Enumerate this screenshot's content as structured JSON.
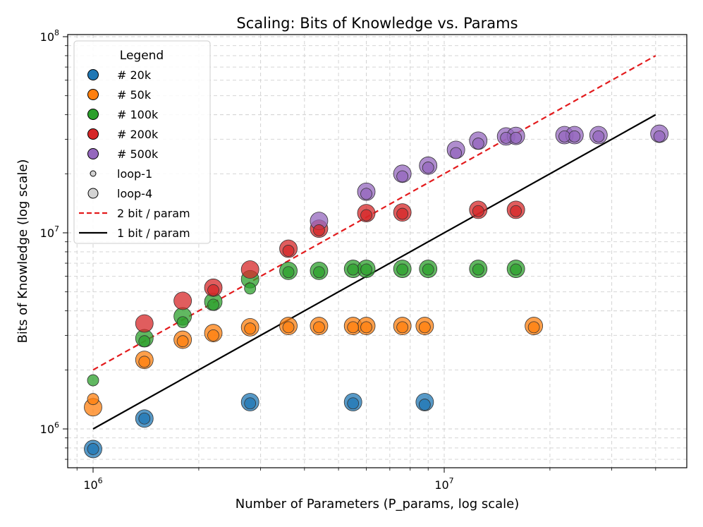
{
  "chart_data": {
    "type": "scatter",
    "title": "Scaling: Bits of Knowledge vs. Params",
    "xlabel": "Number of Parameters (P_params, log scale)",
    "ylabel": "Bits of Knowledge (log scale)",
    "xscale": "log",
    "yscale": "log",
    "xlim": [
      800000,
      55000000
    ],
    "ylim": [
      650000,
      105000000
    ],
    "x_ticks": [
      {
        "value": 1000000,
        "label": "10^6"
      },
      {
        "value": 10000000,
        "label": "10^7"
      }
    ],
    "y_ticks": [
      {
        "value": 1000000,
        "label": "10^6"
      },
      {
        "value": 10000000,
        "label": "10^7"
      },
      {
        "value": 100000000,
        "label": "10^8"
      }
    ],
    "grid": true,
    "legend_title": "Legend",
    "legend_position": "upper-left",
    "series": [
      {
        "name": "# 20k",
        "color": "#1f77b4",
        "loop1": [
          [
            1000000,
            790000
          ],
          [
            1400000,
            1130000
          ],
          [
            2800000,
            1350000
          ],
          [
            5500000,
            1350000
          ],
          [
            8800000,
            1330000
          ]
        ],
        "loop4": [
          [
            1000000,
            790000
          ],
          [
            1400000,
            1130000
          ],
          [
            2800000,
            1370000
          ],
          [
            5500000,
            1370000
          ],
          [
            8800000,
            1370000
          ]
        ]
      },
      {
        "name": "# 50k",
        "color": "#ff7f0e",
        "loop1": [
          [
            1000000,
            1420000
          ],
          [
            1400000,
            2200000
          ],
          [
            1800000,
            2800000
          ],
          [
            2200000,
            3000000
          ],
          [
            2800000,
            3250000
          ],
          [
            3600000,
            3300000
          ],
          [
            4400000,
            3300000
          ],
          [
            5500000,
            3300000
          ],
          [
            6000000,
            3300000
          ],
          [
            7600000,
            3300000
          ],
          [
            8800000,
            3300000
          ],
          [
            18000000,
            3300000
          ]
        ],
        "loop4": [
          [
            1000000,
            1290000
          ],
          [
            1400000,
            2250000
          ],
          [
            1800000,
            2850000
          ],
          [
            2200000,
            3080000
          ],
          [
            2800000,
            3300000
          ],
          [
            3600000,
            3350000
          ],
          [
            4400000,
            3350000
          ],
          [
            5500000,
            3350000
          ],
          [
            6000000,
            3350000
          ],
          [
            7600000,
            3350000
          ],
          [
            8800000,
            3350000
          ],
          [
            18000000,
            3350000
          ]
        ]
      },
      {
        "name": "# 100k",
        "color": "#2ca02c",
        "loop1": [
          [
            1000000,
            1770000
          ],
          [
            1400000,
            2800000
          ],
          [
            1800000,
            3500000
          ],
          [
            2200000,
            4300000
          ],
          [
            2800000,
            5200000
          ],
          [
            3600000,
            6300000
          ],
          [
            4400000,
            6300000
          ],
          [
            5500000,
            6500000
          ],
          [
            6000000,
            6500000
          ],
          [
            7600000,
            6500000
          ],
          [
            9000000,
            6500000
          ],
          [
            12500000,
            6500000
          ],
          [
            16000000,
            6500000
          ]
        ],
        "loop4": [
          [
            1400000,
            2900000
          ],
          [
            1800000,
            3750000
          ],
          [
            2200000,
            4450000
          ],
          [
            2800000,
            5800000
          ],
          [
            3600000,
            6400000
          ],
          [
            4400000,
            6400000
          ],
          [
            5500000,
            6550000
          ],
          [
            6000000,
            6550000
          ],
          [
            7600000,
            6550000
          ],
          [
            9000000,
            6550000
          ],
          [
            12500000,
            6550000
          ],
          [
            16000000,
            6550000
          ]
        ]
      },
      {
        "name": "# 200k",
        "color": "#d62728",
        "loop1": [
          [
            2200000,
            5100000
          ],
          [
            3600000,
            8100000
          ],
          [
            4400000,
            10300000
          ],
          [
            6000000,
            12300000
          ],
          [
            7600000,
            12500000
          ],
          [
            12500000,
            12900000
          ],
          [
            16000000,
            12900000
          ]
        ],
        "loop4": [
          [
            1400000,
            3450000
          ],
          [
            1800000,
            4500000
          ],
          [
            2200000,
            5250000
          ],
          [
            2800000,
            6500000
          ],
          [
            3600000,
            8300000
          ],
          [
            4400000,
            10500000
          ],
          [
            6000000,
            12600000
          ],
          [
            7600000,
            12700000
          ],
          [
            12500000,
            13100000
          ],
          [
            16000000,
            13100000
          ]
        ]
      },
      {
        "name": "# 500k",
        "color": "#9467bd",
        "loop1": [
          [
            6000000,
            15800000
          ],
          [
            7600000,
            19400000
          ],
          [
            9000000,
            21500000
          ],
          [
            10800000,
            25500000
          ],
          [
            12500000,
            28500000
          ],
          [
            15000000,
            30500000
          ],
          [
            16000000,
            30500000
          ],
          [
            22000000,
            31000000
          ],
          [
            23500000,
            31000000
          ],
          [
            27500000,
            31000000
          ],
          [
            41000000,
            31000000
          ]
        ],
        "loop4": [
          [
            4400000,
            11500000
          ],
          [
            6000000,
            16200000
          ],
          [
            7600000,
            20000000
          ],
          [
            9000000,
            22000000
          ],
          [
            10800000,
            26500000
          ],
          [
            12500000,
            29500000
          ],
          [
            15000000,
            31000000
          ],
          [
            16000000,
            31200000
          ],
          [
            22000000,
            31500000
          ],
          [
            23500000,
            31500000
          ],
          [
            27500000,
            31500000
          ],
          [
            41000000,
            32000000
          ]
        ]
      }
    ],
    "marker_legend": [
      {
        "name": "loop-1",
        "size": "small"
      },
      {
        "name": "loop-4",
        "size": "large"
      }
    ],
    "lines": [
      {
        "name": "2 bit / param",
        "style": "dashed",
        "color": "#e31a1c",
        "bits_per_param": 2,
        "x": [
          1000000,
          40000000
        ],
        "y": [
          2000000,
          80000000
        ]
      },
      {
        "name": "1 bit / param",
        "style": "solid",
        "color": "#000000",
        "bits_per_param": 1,
        "x": [
          1000000,
          40000000
        ],
        "y": [
          1000000,
          40000000
        ]
      }
    ]
  }
}
